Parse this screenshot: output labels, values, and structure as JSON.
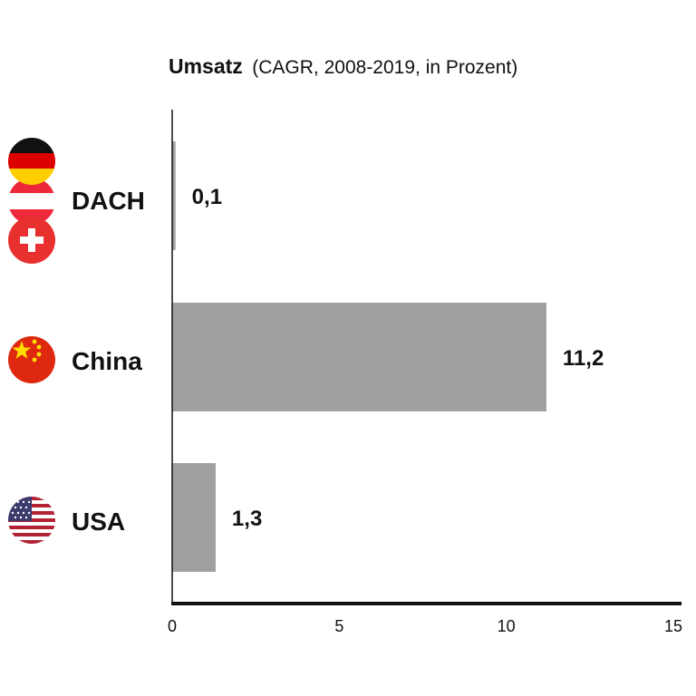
{
  "chart_data": {
    "type": "bar",
    "orientation": "horizontal",
    "title": "Umsatz",
    "subtitle": "(CAGR, 2008-2019, in Prozent)",
    "categories": [
      "DACH",
      "China",
      "USA"
    ],
    "values": [
      0.1,
      11.2,
      1.3
    ],
    "value_labels": [
      "0,1",
      "11,2",
      "1,3"
    ],
    "xlim": [
      0,
      15
    ],
    "x_ticks": [
      0,
      5,
      10,
      15
    ],
    "x_tick_labels": [
      "0",
      "5",
      "10",
      "15"
    ],
    "grid": false,
    "legend": "none",
    "category_icons": [
      [
        "germany-flag-icon",
        "austria-flag-icon",
        "switzerland-flag-icon"
      ],
      [
        "china-flag-icon"
      ],
      [
        "usa-flag-icon"
      ]
    ]
  },
  "colors": {
    "bar": "#a0a0a0",
    "axis": "#111111",
    "text": "#111111",
    "germany": [
      "#111111",
      "#dd0000",
      "#ffce00"
    ],
    "austria": "#ed2939",
    "switzerland": "#e8312f",
    "china": "#de2910",
    "china_star": "#ffde00",
    "usa_red": "#b22234",
    "usa_blue": "#3c3b6e"
  }
}
